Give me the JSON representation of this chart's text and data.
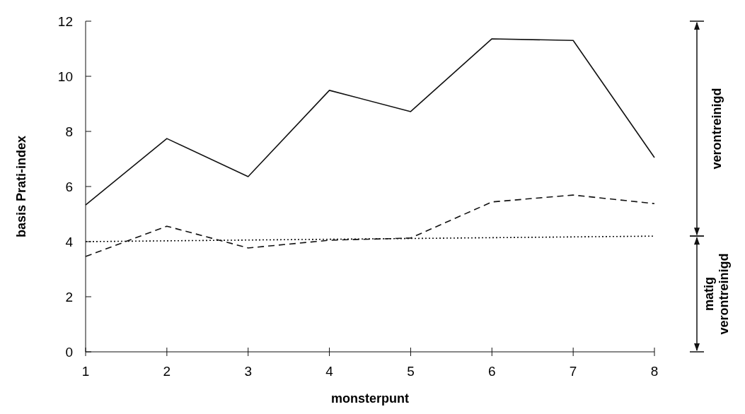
{
  "chart_data": {
    "type": "line",
    "xlabel": "monsterpunt",
    "ylabel": "basis Prati-index",
    "x": [
      1,
      2,
      3,
      4,
      5,
      6,
      7,
      8
    ],
    "series": [
      {
        "color": "#111111",
        "line_style": "solid",
        "values": [
          5.33,
          7.74,
          6.36,
          9.49,
          8.72,
          11.36,
          11.3,
          7.05
        ]
      },
      {
        "color": "#111111",
        "line_style": "dashed",
        "values": [
          3.46,
          4.56,
          3.77,
          4.05,
          4.13,
          5.44,
          5.69,
          5.38
        ]
      },
      {
        "color": "#111111",
        "line_style": "dotted",
        "x": [
          1,
          8
        ],
        "values": [
          4.0,
          4.2
        ]
      }
    ],
    "xlim": [
      1,
      8
    ],
    "xticks": [
      1,
      2,
      3,
      4,
      5,
      6,
      7,
      8
    ],
    "ylim": [
      0,
      12
    ],
    "yticks": [
      0,
      2,
      4,
      6,
      8,
      10,
      12
    ],
    "annotations": [
      "verontreinigd",
      "matig verontreinigd"
    ],
    "grid": false
  }
}
